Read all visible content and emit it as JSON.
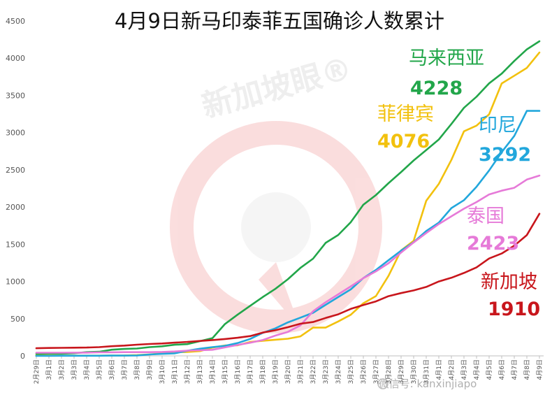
{
  "chart_data": {
    "type": "line",
    "title": "4月9日新马印泰菲五国确诊人数累计",
    "xlabel": "",
    "ylabel": "",
    "ylim": [
      0,
      4500
    ],
    "yticks": [
      0,
      500,
      1000,
      1500,
      2000,
      2500,
      3000,
      3500,
      4000,
      4500
    ],
    "grid": false,
    "legend": "none",
    "x": [
      "2月29日",
      "3月1日",
      "3月2日",
      "3月3日",
      "3月4日",
      "3月5日",
      "3月6日",
      "3月7日",
      "3月8日",
      "3月9日",
      "3月10日",
      "3月11日",
      "3月12日",
      "3月13日",
      "3月14日",
      "3月15日",
      "3月16日",
      "3月17日",
      "3月18日",
      "3月19日",
      "3月20日",
      "3月21日",
      "3月22日",
      "3月23日",
      "3月24日",
      "3月25日",
      "3月26日",
      "3月27日",
      "3月28日",
      "3月29日",
      "3月30日",
      "3月31日",
      "4月1日",
      "4月2日",
      "4月3日",
      "4月4日",
      "4月5日",
      "4月6日",
      "4月7日",
      "4月8日",
      "4月9日"
    ],
    "series": [
      {
        "name": "马来西亚",
        "label_value": "4228",
        "color": "#22a64a",
        "values": [
          25,
          29,
          29,
          36,
          50,
          55,
          83,
          93,
          99,
          117,
          129,
          149,
          158,
          197,
          238,
          428,
          553,
          673,
          790,
          900,
          1030,
          1183,
          1306,
          1518,
          1624,
          1796,
          2031,
          2161,
          2320,
          2470,
          2626,
          2766,
          2908,
          3116,
          3333,
          3483,
          3662,
          3793,
          3963,
          4119,
          4228
        ]
      },
      {
        "name": "菲律宾",
        "label_value": "4076",
        "color": "#f2c10e",
        "values": [
          3,
          3,
          3,
          3,
          3,
          3,
          5,
          6,
          10,
          20,
          33,
          49,
          52,
          64,
          111,
          140,
          142,
          187,
          202,
          217,
          230,
          262,
          380,
          380,
          462,
          552,
          707,
          803,
          1075,
          1418,
          1546,
          2084,
          2311,
          2633,
          3018,
          3094,
          3246,
          3660,
          3764,
          3870,
          4076
        ]
      },
      {
        "name": "印尼",
        "label_value": "3292",
        "color": "#22a7dc",
        "values": [
          0,
          0,
          2,
          2,
          2,
          2,
          4,
          4,
          6,
          19,
          27,
          34,
          69,
          96,
          117,
          134,
          172,
          227,
          309,
          369,
          450,
          514,
          579,
          686,
          790,
          893,
          1046,
          1155,
          1285,
          1414,
          1528,
          1677,
          1790,
          1986,
          2092,
          2273,
          2491,
          2738,
          2956,
          3293,
          3292
        ]
      },
      {
        "name": "泰国",
        "label_value": "2423",
        "color": "#e67ad8",
        "values": [
          42,
          42,
          42,
          43,
          43,
          47,
          48,
          50,
          50,
          50,
          53,
          59,
          70,
          75,
          82,
          114,
          147,
          177,
          212,
          272,
          322,
          411,
          599,
          721,
          827,
          934,
          1045,
          1136,
          1245,
          1388,
          1524,
          1651,
          1771,
          1875,
          1978,
          2067,
          2169,
          2220,
          2258,
          2369,
          2423
        ]
      },
      {
        "name": "新加坡",
        "label_value": "1910",
        "color": "#c8161c",
        "values": [
          102,
          106,
          108,
          110,
          112,
          117,
          130,
          138,
          150,
          160,
          166,
          178,
          187,
          200,
          212,
          226,
          243,
          266,
          313,
          345,
          385,
          432,
          455,
          509,
          558,
          631,
          683,
          732,
          802,
          844,
          879,
          926,
          1000,
          1049,
          1114,
          1189,
          1309,
          1375,
          1481,
          1623,
          1910
        ]
      }
    ]
  },
  "watermark": {
    "text": "新加坡眼®",
    "footer": "微信号: kanxinjiapo"
  }
}
